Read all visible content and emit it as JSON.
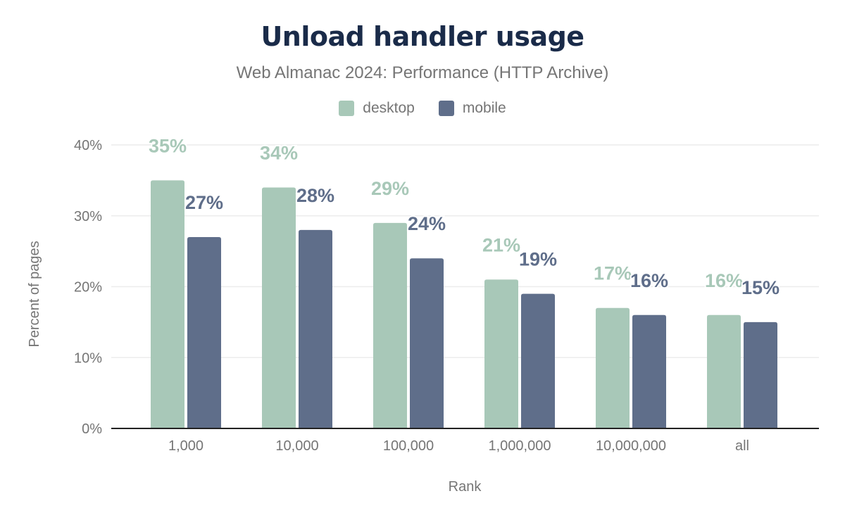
{
  "chart_data": {
    "type": "bar",
    "title": "Unload handler usage",
    "subtitle": "Web Almanac 2024: Performance (HTTP Archive)",
    "xlabel": "Rank",
    "ylabel": "Percent of pages",
    "categories": [
      "1,000",
      "10,000",
      "100,000",
      "1,000,000",
      "10,000,000",
      "all"
    ],
    "series": [
      {
        "name": "desktop",
        "color": "#a8c8b8",
        "values": [
          35,
          34,
          29,
          21,
          17,
          16
        ],
        "labels": [
          "35%",
          "34%",
          "29%",
          "21%",
          "17%",
          "16%"
        ]
      },
      {
        "name": "mobile",
        "color": "#5f6e8a",
        "values": [
          27,
          28,
          24,
          19,
          16,
          15
        ],
        "labels": [
          "27%",
          "28%",
          "24%",
          "19%",
          "16%",
          "15%"
        ]
      }
    ],
    "ylim": [
      0,
      40
    ],
    "yticks": [
      "0%",
      "10%",
      "20%",
      "30%",
      "40%"
    ],
    "grid": true,
    "legend": "top-center"
  }
}
